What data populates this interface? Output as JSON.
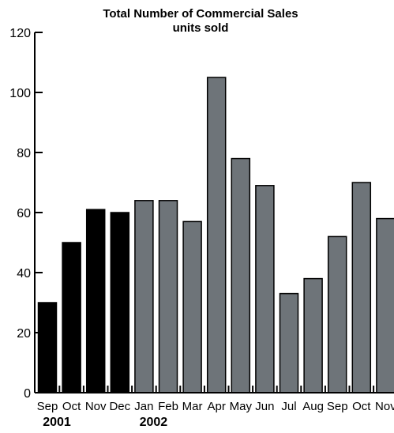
{
  "chart_data": {
    "type": "bar",
    "title": "Total Number of Commercial Sales",
    "subtitle": "units sold",
    "categories": [
      "Sep",
      "Oct",
      "Nov",
      "Dec",
      "Jan",
      "Feb",
      "Mar",
      "Apr",
      "May",
      "Jun",
      "Jul",
      "Aug",
      "Sep",
      "Oct",
      "Nov"
    ],
    "values": [
      30,
      50,
      61,
      60,
      64,
      64,
      57,
      105,
      78,
      69,
      33,
      38,
      52,
      70,
      58
    ],
    "year_labels": [
      {
        "text": "2001",
        "category_index": 0
      },
      {
        "text": "2002",
        "category_index": 4
      }
    ],
    "bar_colors": [
      "#000000",
      "#000000",
      "#000000",
      "#000000",
      "#6e7479",
      "#6e7479",
      "#6e7479",
      "#6e7479",
      "#6e7479",
      "#6e7479",
      "#6e7479",
      "#6e7479",
      "#6e7479",
      "#6e7479",
      "#6e7479"
    ],
    "colors": {
      "year_2001": "#000000",
      "year_2002": "#6e7479",
      "axis": "#000000"
    },
    "yticks": [
      0,
      20,
      40,
      60,
      80,
      100,
      120
    ],
    "ylim": [
      0,
      120
    ],
    "xlabel": "",
    "ylabel": "",
    "grid": false,
    "legend": "none"
  }
}
